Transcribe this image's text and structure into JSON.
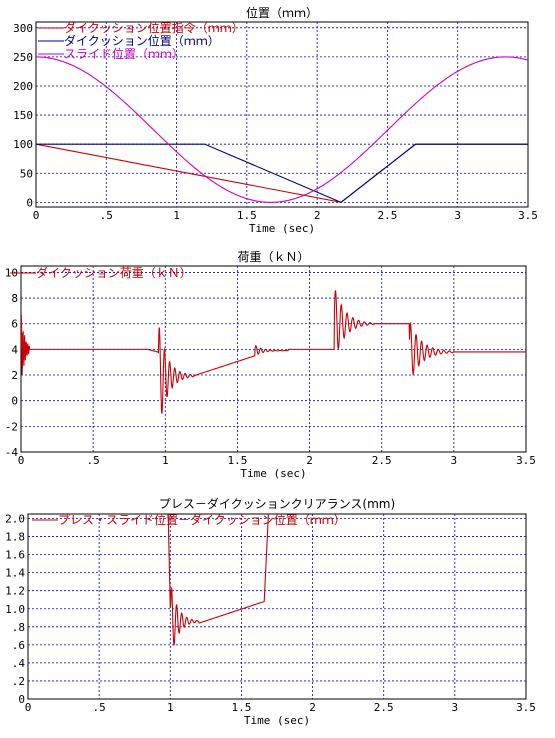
{
  "chart_data": [
    {
      "type": "line",
      "title": "位置（ｍｍ）",
      "xlabel": "Time (sec)",
      "ylabel": "",
      "xlim": [
        0,
        3.5
      ],
      "ylim": [
        -8,
        310
      ],
      "xticks": [
        0,
        0.5,
        1,
        1.5,
        2,
        2.5,
        3,
        3.5
      ],
      "xtick_labels": [
        "0",
        ".5",
        "1",
        "1.5",
        "2",
        "2.5",
        "3",
        "3.5"
      ],
      "yticks": [
        0,
        50,
        100,
        150,
        200,
        250,
        300
      ],
      "ytick_labels": [
        "0",
        "50",
        "100",
        "150",
        "200",
        "250",
        "300"
      ],
      "grid": true,
      "legend_placement": "top-left",
      "series": [
        {
          "name": "ダイクッション位置指令（ｍｍ）",
          "color": "#cc0000",
          "x": [
            0,
            2.17,
            2.7,
            3.5
          ],
          "y": [
            100,
            0,
            100,
            100
          ],
          "note_shape": "hidden-under-blue"
        },
        {
          "name": "ダイクッション位置（ｍｍ）",
          "color": "#000080",
          "x": [
            0,
            0.8,
            1.0,
            1.2,
            2.17,
            2.7,
            3.5
          ],
          "y": [
            100,
            100,
            100,
            100,
            0,
            100,
            100
          ]
        },
        {
          "name": "スライド位置（ｍｍ）",
          "color": "#cc00cc",
          "x": [
            0,
            0.25,
            0.5,
            0.75,
            1.0,
            1.25,
            1.5,
            1.67,
            1.85,
            2.1,
            2.35,
            2.6,
            2.85,
            3.1,
            3.34,
            3.5
          ],
          "y": [
            250,
            239,
            209,
            162,
            102,
            46,
            10,
            0,
            10,
            46,
            102,
            162,
            209,
            239,
            250,
            244
          ]
        }
      ]
    },
    {
      "type": "line",
      "title": "荷重（ｋＮ）",
      "xlabel": "Time (sec)",
      "ylabel": "",
      "xlim": [
        0,
        3.5
      ],
      "ylim": [
        -4,
        10.5
      ],
      "xticks": [
        0,
        0.5,
        1,
        1.5,
        2,
        2.5,
        3,
        3.5
      ],
      "xtick_labels": [
        "0",
        ".5",
        "1",
        "1.5",
        "2",
        "2.5",
        "3",
        "3.5"
      ],
      "yticks": [
        -4,
        -2,
        0,
        2,
        4,
        6,
        8,
        10
      ],
      "ytick_labels": [
        "-4",
        "-2",
        "0",
        "2",
        "4",
        "6",
        "8",
        "10"
      ],
      "grid": true,
      "legend_placement": "top-left",
      "series": [
        {
          "name": "ダイクッション荷重（ｋＮ）",
          "color": "#cc0000",
          "x": [
            0,
            0.05,
            0.4,
            0.9,
            0.95,
            1.0,
            1.1,
            1.15,
            1.4,
            1.65,
            1.75,
            2.0,
            2.15,
            2.2,
            2.4,
            2.6,
            2.7,
            2.75,
            3.0,
            3.5
          ],
          "y": [
            4,
            4,
            4,
            4,
            3.8,
            2.0,
            1.8,
            1.9,
            2.6,
            3.5,
            4.0,
            4.0,
            4.0,
            6.0,
            6.0,
            6.0,
            6.0,
            4.0,
            3.8,
            3.8
          ]
        }
      ]
    },
    {
      "type": "line",
      "title": "プレス－ダイクッションクリアランス(mm)",
      "xlabel": "Time (sec)",
      "ylabel": "",
      "xlim": [
        0,
        3.5
      ],
      "ylim": [
        0,
        2.05
      ],
      "xticks": [
        0,
        0.5,
        1,
        1.5,
        2,
        2.5,
        3,
        3.5
      ],
      "xtick_labels": [
        "0",
        ".5",
        "1",
        "1.5",
        "2",
        "2.5",
        "3",
        "3.5"
      ],
      "yticks": [
        0,
        0.2,
        0.4,
        0.6,
        0.8,
        1.0,
        1.2,
        1.4,
        1.6,
        1.8,
        2.0
      ],
      "ytick_labels": [
        "0",
        ".2",
        ".4",
        ".6",
        ".8",
        "1.0",
        "1.2",
        "1.4",
        "1.6",
        "1.8",
        "2.0"
      ],
      "grid": true,
      "legend_placement": "top-left",
      "series": [
        {
          "name": "プレス・スライド位置－ダイクッション位置（ｍｍ）",
          "color": "#cc0000",
          "x": [
            0.98,
            1.0,
            1.1,
            1.2,
            1.4,
            1.65,
            1.68
          ],
          "y": [
            2.05,
            0.9,
            0.85,
            0.85,
            0.97,
            1.07,
            2.05
          ]
        }
      ]
    }
  ]
}
